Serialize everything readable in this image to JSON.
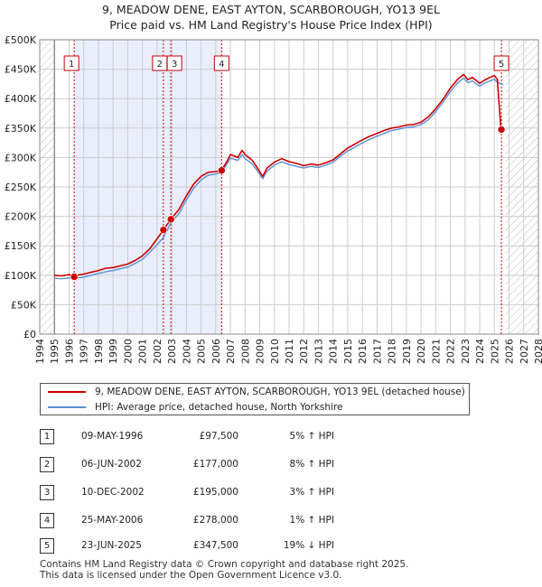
{
  "title_line1": "9, MEADOW DENE, EAST AYTON, SCARBOROUGH, YO13 9EL",
  "title_line2": "Price paid vs. HM Land Registry's House Price Index (HPI)",
  "legend": {
    "property": "9, MEADOW DENE, EAST AYTON, SCARBOROUGH, YO13 9EL (detached house)",
    "hpi": "HPI: Average price, detached house, North Yorkshire"
  },
  "sales": [
    {
      "num": "1",
      "date": "09-MAY-1996",
      "price": "£97,500",
      "hpi": "5% ↑ HPI"
    },
    {
      "num": "2",
      "date": "06-JUN-2002",
      "price": "£177,000",
      "hpi": "8% ↑ HPI"
    },
    {
      "num": "3",
      "date": "10-DEC-2002",
      "price": "£195,000",
      "hpi": "3% ↑ HPI"
    },
    {
      "num": "4",
      "date": "25-MAY-2006",
      "price": "£278,000",
      "hpi": "1% ↑ HPI"
    },
    {
      "num": "5",
      "date": "23-JUN-2025",
      "price": "£347,500",
      "hpi": "19% ↓ HPI"
    }
  ],
  "footer_line1": "Contains HM Land Registry data © Crown copyright and database right 2025.",
  "footer_line2": "This data is licensed under the Open Government Licence v3.0.",
  "chart_data": {
    "type": "line",
    "title": "9, MEADOW DENE, EAST AYTON, SCARBOROUGH, YO13 9EL — Price paid vs. HM Land Registry's House Price Index (HPI)",
    "xlim": [
      1994,
      2028
    ],
    "ylim": [
      0,
      500000
    ],
    "x_ticks": [
      1994,
      1995,
      1996,
      1997,
      1998,
      1999,
      2000,
      2001,
      2002,
      2003,
      2004,
      2005,
      2006,
      2007,
      2008,
      2009,
      2010,
      2011,
      2012,
      2013,
      2014,
      2015,
      2016,
      2017,
      2018,
      2019,
      2020,
      2021,
      2022,
      2023,
      2024,
      2025,
      2026,
      2027,
      2028
    ],
    "y_ticks": [
      0,
      50000,
      100000,
      150000,
      200000,
      250000,
      300000,
      350000,
      400000,
      450000,
      500000
    ],
    "y_tick_labels": [
      "£0",
      "£50K",
      "£100K",
      "£150K",
      "£200K",
      "£250K",
      "£300K",
      "£350K",
      "£400K",
      "£450K",
      "£500K"
    ],
    "data_range": [
      1995,
      2025.75
    ],
    "shaded_ranges": [
      [
        1996.35,
        2006.4
      ]
    ],
    "hatched_ranges": [
      [
        1994,
        1995
      ],
      [
        2025.75,
        2028
      ]
    ],
    "colors": {
      "property": "#cc0000",
      "hpi": "#5b8fd6",
      "shade": "#e8eefb",
      "grid": "#cccccc",
      "vline": "#cc0000"
    },
    "series": [
      {
        "name": "9, MEADOW DENE, EAST AYTON, SCARBOROUGH, YO13 9EL (detached house)",
        "x": [
          1995,
          1995.5,
          1996,
          1996.35,
          1996.5,
          1997,
          1997.5,
          1998,
          1998.5,
          1999,
          1999.5,
          2000,
          2000.5,
          2001,
          2001.5,
          2002,
          2002.43,
          2002.94,
          2003.5,
          2004,
          2004.5,
          2005,
          2005.5,
          2006,
          2006.4,
          2006.8,
          2007,
          2007.5,
          2007.8,
          2008,
          2008.5,
          2008.9,
          2009.2,
          2009.5,
          2010,
          2010.5,
          2011,
          2011.5,
          2012,
          2012.5,
          2013,
          2013.5,
          2014,
          2014.5,
          2015,
          2015.5,
          2016,
          2016.5,
          2017,
          2017.5,
          2018,
          2018.5,
          2019,
          2019.5,
          2020,
          2020.5,
          2021,
          2021.5,
          2022,
          2022.5,
          2022.9,
          2023.2,
          2023.5,
          2024,
          2024.3,
          2024.7,
          2025,
          2025.2,
          2025.45,
          2025.6
        ],
        "values": [
          100000,
          99000,
          101000,
          97500,
          100000,
          102000,
          105000,
          108000,
          112000,
          113000,
          116000,
          119000,
          125000,
          133000,
          145000,
          162000,
          177000,
          195000,
          212000,
          235000,
          255000,
          268000,
          275000,
          276000,
          278000,
          295000,
          305000,
          300000,
          312000,
          305000,
          295000,
          280000,
          268000,
          282000,
          292000,
          298000,
          293000,
          290000,
          286000,
          289000,
          287000,
          291000,
          296000,
          306000,
          316000,
          323000,
          330000,
          336000,
          341000,
          346000,
          350000,
          352000,
          355000,
          356000,
          360000,
          369000,
          383000,
          399000,
          418000,
          433000,
          441000,
          432000,
          436000,
          426000,
          431000,
          436000,
          439000,
          433000,
          347500,
          347500
        ]
      },
      {
        "name": "HPI: Average price, detached house, North Yorkshire",
        "x": [
          1995,
          1995.5,
          1996,
          1996.35,
          1996.5,
          1997,
          1997.5,
          1998,
          1998.5,
          1999,
          1999.5,
          2000,
          2000.5,
          2001,
          2001.5,
          2002,
          2002.43,
          2002.94,
          2003.5,
          2004,
          2004.5,
          2005,
          2005.5,
          2006,
          2006.4,
          2006.8,
          2007,
          2007.5,
          2007.8,
          2008,
          2008.5,
          2008.9,
          2009.2,
          2009.5,
          2010,
          2010.5,
          2011,
          2011.5,
          2012,
          2012.5,
          2013,
          2013.5,
          2014,
          2014.5,
          2015,
          2015.5,
          2016,
          2016.5,
          2017,
          2017.5,
          2018,
          2018.5,
          2019,
          2019.5,
          2020,
          2020.5,
          2021,
          2021.5,
          2022,
          2022.5,
          2022.9,
          2023.2,
          2023.5,
          2024,
          2024.3,
          2024.7,
          2025,
          2025.2,
          2025.45,
          2025.6
        ],
        "values": [
          95000,
          94000,
          95500,
          93000,
          95000,
          97000,
          100000,
          103000,
          106000,
          108000,
          111000,
          114000,
          120000,
          127000,
          139000,
          152000,
          164000,
          189000,
          205000,
          228000,
          248000,
          262000,
          270000,
          272000,
          275000,
          290000,
          299000,
          295000,
          305000,
          298000,
          289000,
          275000,
          264000,
          277000,
          287000,
          293000,
          288000,
          285000,
          282000,
          285000,
          283000,
          287000,
          292000,
          302000,
          311000,
          318000,
          325000,
          331000,
          336000,
          341000,
          346000,
          348000,
          351000,
          352000,
          356000,
          364000,
          378000,
          394000,
          412000,
          427000,
          435000,
          427000,
          430000,
          421000,
          426000,
          430000,
          433000,
          428000,
          425000,
          424000
        ]
      }
    ],
    "sales": [
      {
        "num": "1",
        "x": 1996.35,
        "value": 97500
      },
      {
        "num": "2",
        "x": 2002.43,
        "value": 177000
      },
      {
        "num": "3",
        "x": 2002.94,
        "value": 195000
      },
      {
        "num": "4",
        "x": 2006.4,
        "value": 278000
      },
      {
        "num": "5",
        "x": 2025.48,
        "value": 347500
      }
    ],
    "marker_labels": [
      {
        "num": "1",
        "x": 1996.35
      },
      {
        "num": "2",
        "x": 2002.43
      },
      {
        "num": "3",
        "x": 2002.94
      },
      {
        "num": "4",
        "x": 2006.4
      },
      {
        "num": "5",
        "x": 2025.48
      }
    ]
  }
}
